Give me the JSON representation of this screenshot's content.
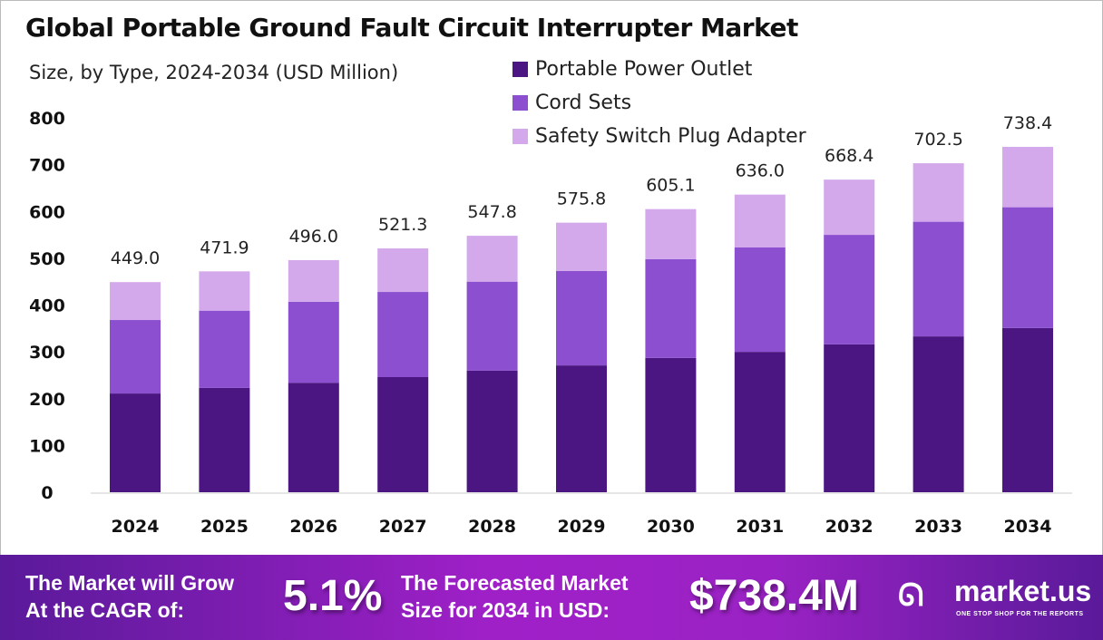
{
  "chart_data": {
    "type": "bar",
    "stacked": true,
    "title": "Global Portable Ground Fault Circuit Interrupter Market",
    "subtitle": "Size, by Type, 2024-2034 (USD Million)",
    "categories": [
      "2024",
      "2025",
      "2026",
      "2027",
      "2028",
      "2029",
      "2030",
      "2031",
      "2032",
      "2033",
      "2034"
    ],
    "series": [
      {
        "name": "Portable Power Outlet",
        "color": "#4b1682",
        "values": [
          211,
          223,
          234,
          246,
          260,
          271,
          287,
          300,
          316,
          333,
          351
        ]
      },
      {
        "name": "Cord Sets",
        "color": "#8b4fd0",
        "values": [
          157,
          165,
          173,
          182,
          190,
          202,
          211,
          223,
          234,
          245,
          258
        ]
      },
      {
        "name": "Safety Switch Plug Adapter",
        "color": "#d3a9ec",
        "values": [
          81,
          84,
          89,
          93,
          98,
          103,
          107,
          113,
          118,
          125,
          129
        ]
      }
    ],
    "totals": [
      "449.0",
      "471.9",
      "496.0",
      "521.3",
      "547.8",
      "575.8",
      "605.1",
      "636.0",
      "668.4",
      "702.5",
      "738.4"
    ],
    "ylim": [
      0,
      800
    ],
    "yticks": [
      "0",
      "100",
      "200",
      "300",
      "400",
      "500",
      "600",
      "700",
      "800"
    ],
    "grid": false,
    "legend": "top-center"
  },
  "footer": {
    "cagr_label_1": "The Market will Grow",
    "cagr_label_2": "At the CAGR of:",
    "cagr_value": "5.1%",
    "forecast_label_1": "The Forecasted Market",
    "forecast_label_2": "Size for 2034 in USD:",
    "forecast_value": "$738.4M",
    "logo_name": "market.us",
    "logo_tagline": "ONE STOP SHOP FOR THE REPORTS"
  }
}
